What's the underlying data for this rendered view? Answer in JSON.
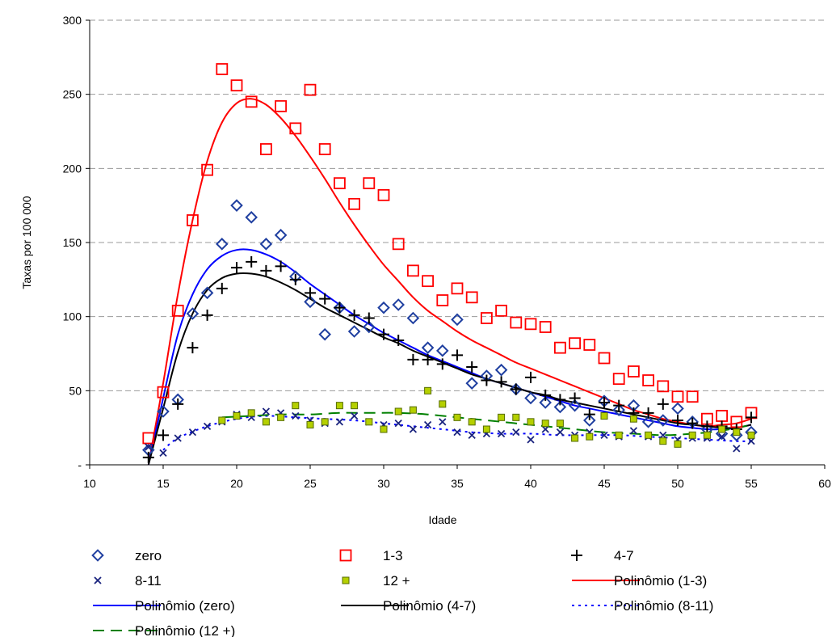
{
  "chart_data": {
    "type": "scatter",
    "xlabel": "Idade",
    "ylabel": "Taxas por 100 000",
    "xlim": [
      10,
      60
    ],
    "ylim": [
      0,
      300
    ],
    "x_ticks": [
      "10",
      "15",
      "20",
      "25",
      "30",
      "35",
      "40",
      "45",
      "50",
      "55",
      "60"
    ],
    "y_ticks": [
      "-",
      "50",
      "100",
      "150",
      "200",
      "250",
      "300"
    ],
    "grid": "horizontal dashed",
    "legend_position": "bottom",
    "series": [
      {
        "name": "zero",
        "marker": "diamond",
        "color": "#1f3fa0",
        "x": [
          14,
          15,
          16,
          17,
          18,
          19,
          20,
          21,
          22,
          23,
          24,
          25,
          26,
          27,
          28,
          29,
          30,
          31,
          32,
          33,
          34,
          35,
          36,
          37,
          38,
          39,
          40,
          41,
          42,
          43,
          44,
          45,
          46,
          47,
          48,
          49,
          50,
          51,
          52,
          53,
          54,
          55
        ],
        "y": [
          10,
          36,
          44,
          102,
          116,
          149,
          175,
          167,
          149,
          155,
          127,
          110,
          88,
          106,
          90,
          93,
          106,
          108,
          99,
          79,
          77,
          98,
          55,
          60,
          64,
          51,
          45,
          42,
          39,
          40,
          30,
          43,
          37,
          40,
          29,
          30,
          38,
          29,
          24,
          21,
          20,
          22
        ]
      },
      {
        "name": "1-3",
        "marker": "square",
        "color": "#ff0000",
        "x": [
          14,
          15,
          16,
          17,
          18,
          19,
          20,
          21,
          22,
          23,
          24,
          25,
          26,
          27,
          28,
          29,
          30,
          31,
          32,
          33,
          34,
          35,
          36,
          37,
          38,
          39,
          40,
          41,
          42,
          43,
          44,
          45,
          46,
          47,
          48,
          49,
          50,
          51,
          52,
          53,
          54,
          55
        ],
        "y": [
          18,
          49,
          104,
          165,
          199,
          267,
          256,
          245,
          213,
          242,
          227,
          253,
          213,
          190,
          176,
          190,
          182,
          149,
          131,
          124,
          111,
          119,
          113,
          99,
          104,
          96,
          95,
          93,
          79,
          82,
          81,
          72,
          58,
          63,
          57,
          53,
          46,
          46,
          31,
          33,
          29,
          35
        ]
      },
      {
        "name": "4-7",
        "marker": "plus",
        "color": "#000000",
        "x": [
          14,
          15,
          16,
          17,
          18,
          19,
          20,
          21,
          22,
          23,
          24,
          25,
          26,
          27,
          28,
          29,
          30,
          31,
          32,
          33,
          34,
          35,
          36,
          37,
          38,
          39,
          40,
          41,
          42,
          43,
          44,
          45,
          46,
          47,
          48,
          49,
          50,
          51,
          52,
          53,
          54,
          55
        ],
        "y": [
          5,
          20,
          41,
          79,
          101,
          119,
          133,
          137,
          131,
          134,
          125,
          116,
          112,
          106,
          101,
          99,
          88,
          84,
          71,
          71,
          68,
          74,
          66,
          57,
          56,
          51,
          59,
          47,
          44,
          45,
          34,
          42,
          40,
          35,
          35,
          41,
          30,
          28,
          26,
          26,
          24,
          32
        ]
      },
      {
        "name": "8-11",
        "marker": "x",
        "color": "#1a237e",
        "x": [
          14,
          15,
          16,
          17,
          18,
          19,
          20,
          21,
          22,
          23,
          24,
          25,
          26,
          27,
          28,
          29,
          30,
          31,
          32,
          33,
          34,
          35,
          36,
          37,
          38,
          39,
          40,
          41,
          42,
          43,
          44,
          45,
          46,
          47,
          48,
          49,
          50,
          51,
          52,
          53,
          54,
          55
        ],
        "y": [
          12,
          8,
          18,
          22,
          26,
          29,
          34,
          32,
          36,
          35,
          33,
          30,
          28,
          29,
          33,
          29,
          27,
          28,
          24,
          27,
          29,
          22,
          20,
          21,
          21,
          22,
          17,
          24,
          22,
          20,
          22,
          20,
          19,
          23,
          19,
          20,
          17,
          18,
          18,
          19,
          11,
          16
        ]
      },
      {
        "name": "12 +",
        "marker": "small-square",
        "color": "#b5d000",
        "x": [
          19,
          20,
          21,
          22,
          23,
          24,
          25,
          26,
          27,
          28,
          29,
          30,
          31,
          32,
          33,
          34,
          35,
          36,
          37,
          38,
          39,
          40,
          41,
          42,
          43,
          44,
          45,
          46,
          47,
          48,
          49,
          50,
          51,
          52,
          53,
          54,
          55
        ],
        "y": [
          30,
          33,
          35,
          29,
          32,
          40,
          27,
          29,
          40,
          40,
          29,
          24,
          36,
          37,
          50,
          41,
          32,
          29,
          24,
          32,
          32,
          29,
          28,
          28,
          18,
          19,
          33,
          20,
          31,
          20,
          16,
          14,
          20,
          20,
          24,
          22,
          20
        ]
      },
      {
        "name": "Polinômio (1-3)",
        "trend": true,
        "color": "#ff0000",
        "dash": "solid",
        "x": [
          14,
          15,
          16,
          17,
          18,
          19,
          20,
          21,
          22,
          23,
          24,
          25,
          26,
          27,
          28,
          29,
          30,
          31,
          32,
          33,
          34,
          35,
          36,
          37,
          38,
          39,
          40,
          41,
          42,
          43,
          44,
          45,
          46,
          47,
          48,
          49,
          50,
          51,
          52,
          53,
          54,
          55
        ],
        "y": [
          0,
          55,
          115,
          165,
          205,
          231,
          244,
          247,
          243,
          234,
          222,
          208,
          193,
          177,
          162,
          148,
          135,
          124,
          113,
          104,
          97,
          90,
          84,
          79,
          74,
          69,
          65,
          61,
          57,
          53,
          49,
          45,
          41,
          37,
          34,
          31,
          29,
          27,
          26,
          27,
          28,
          31
        ]
      },
      {
        "name": "Polinômio (zero)",
        "trend": true,
        "color": "#0000ff",
        "dash": "solid",
        "x": [
          14,
          15,
          16,
          17,
          18,
          19,
          20,
          21,
          22,
          23,
          24,
          25,
          26,
          27,
          28,
          29,
          30,
          31,
          32,
          33,
          34,
          35,
          36,
          37,
          38,
          39,
          40,
          41,
          42,
          43,
          44,
          45,
          46,
          47,
          48,
          49,
          50,
          51,
          52,
          53,
          54,
          55
        ],
        "y": [
          0,
          45,
          88,
          115,
          132,
          141,
          145,
          145,
          142,
          137,
          130,
          122,
          115,
          108,
          101,
          95,
          89,
          84,
          79,
          74,
          70,
          66,
          62,
          58,
          55,
          52,
          49,
          46,
          43,
          40,
          38,
          36,
          34,
          32,
          30,
          28,
          26,
          25,
          24,
          24,
          25,
          27
        ]
      },
      {
        "name": "Polinômio (4-7)",
        "trend": true,
        "color": "#000000",
        "dash": "solid",
        "x": [
          14,
          15,
          16,
          17,
          18,
          19,
          20,
          21,
          22,
          23,
          24,
          25,
          26,
          27,
          28,
          29,
          30,
          31,
          32,
          33,
          34,
          35,
          36,
          37,
          38,
          39,
          40,
          41,
          42,
          43,
          44,
          45,
          46,
          47,
          48,
          49,
          50,
          51,
          52,
          53,
          54,
          55
        ],
        "y": [
          0,
          38,
          76,
          102,
          118,
          126,
          129,
          129,
          127,
          123,
          118,
          112,
          106,
          101,
          96,
          91,
          86,
          82,
          77,
          73,
          69,
          65,
          61,
          58,
          55,
          52,
          49,
          47,
          44,
          42,
          40,
          38,
          36,
          34,
          32,
          30,
          28,
          27,
          26,
          25,
          25,
          27
        ]
      },
      {
        "name": "Polinômio (8-11)",
        "trend": true,
        "color": "#0000ff",
        "dash": "dotted",
        "x": [
          15,
          16,
          18,
          20,
          22,
          24,
          26,
          28,
          30,
          32,
          34,
          36,
          38,
          40,
          42,
          44,
          46,
          48,
          50,
          52,
          54,
          55
        ],
        "y": [
          10,
          18,
          26,
          31,
          33,
          32,
          31,
          30,
          28,
          26,
          24,
          22,
          21,
          21,
          20,
          20,
          20,
          19,
          18,
          17,
          16,
          16
        ]
      },
      {
        "name": "Polinômio (12 +)",
        "trend": true,
        "color": "#008000",
        "dash": "dashed",
        "x": [
          19,
          21,
          23,
          25,
          27,
          29,
          31,
          33,
          35,
          37,
          39,
          41,
          43,
          45,
          47,
          49,
          51,
          53,
          55
        ],
        "y": [
          32,
          33,
          34,
          34,
          35,
          35,
          35,
          34,
          32,
          30,
          28,
          26,
          24,
          22,
          21,
          20,
          21,
          23,
          27
        ]
      }
    ]
  }
}
